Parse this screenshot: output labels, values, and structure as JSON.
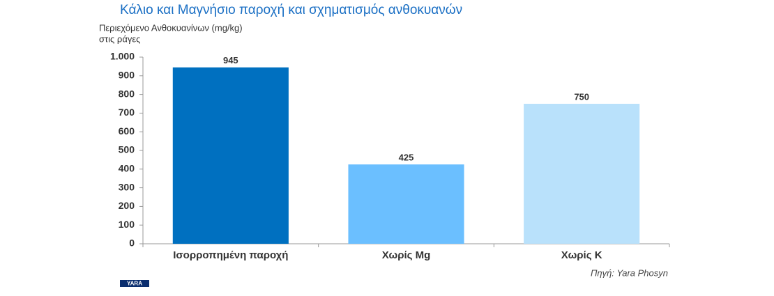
{
  "chart_data": {
    "type": "bar",
    "title": "Κάλιο και Μαγνήσιο παροχή και σχηματισμός ανθοκυανών",
    "ylabel": [
      "Περιεχόμενο Ανθοκυανίνων (mg/kg)",
      "στις ράγες"
    ],
    "categories": [
      "Ισορροπημένη παροχή",
      "Χωρίς Mg",
      "Χωρίς K"
    ],
    "values": [
      945,
      425,
      750
    ],
    "colors": [
      "#0070c0",
      "#6bbfff",
      "#b9e1fb"
    ],
    "ylim": [
      0,
      1000
    ],
    "yticks": [
      0,
      100,
      200,
      300,
      400,
      500,
      600,
      700,
      800,
      900,
      {
        "value": 1000,
        "label": "1.000"
      }
    ],
    "grid": false,
    "source": "Πηγή: Yara Phosyn",
    "logo": "YARA"
  }
}
